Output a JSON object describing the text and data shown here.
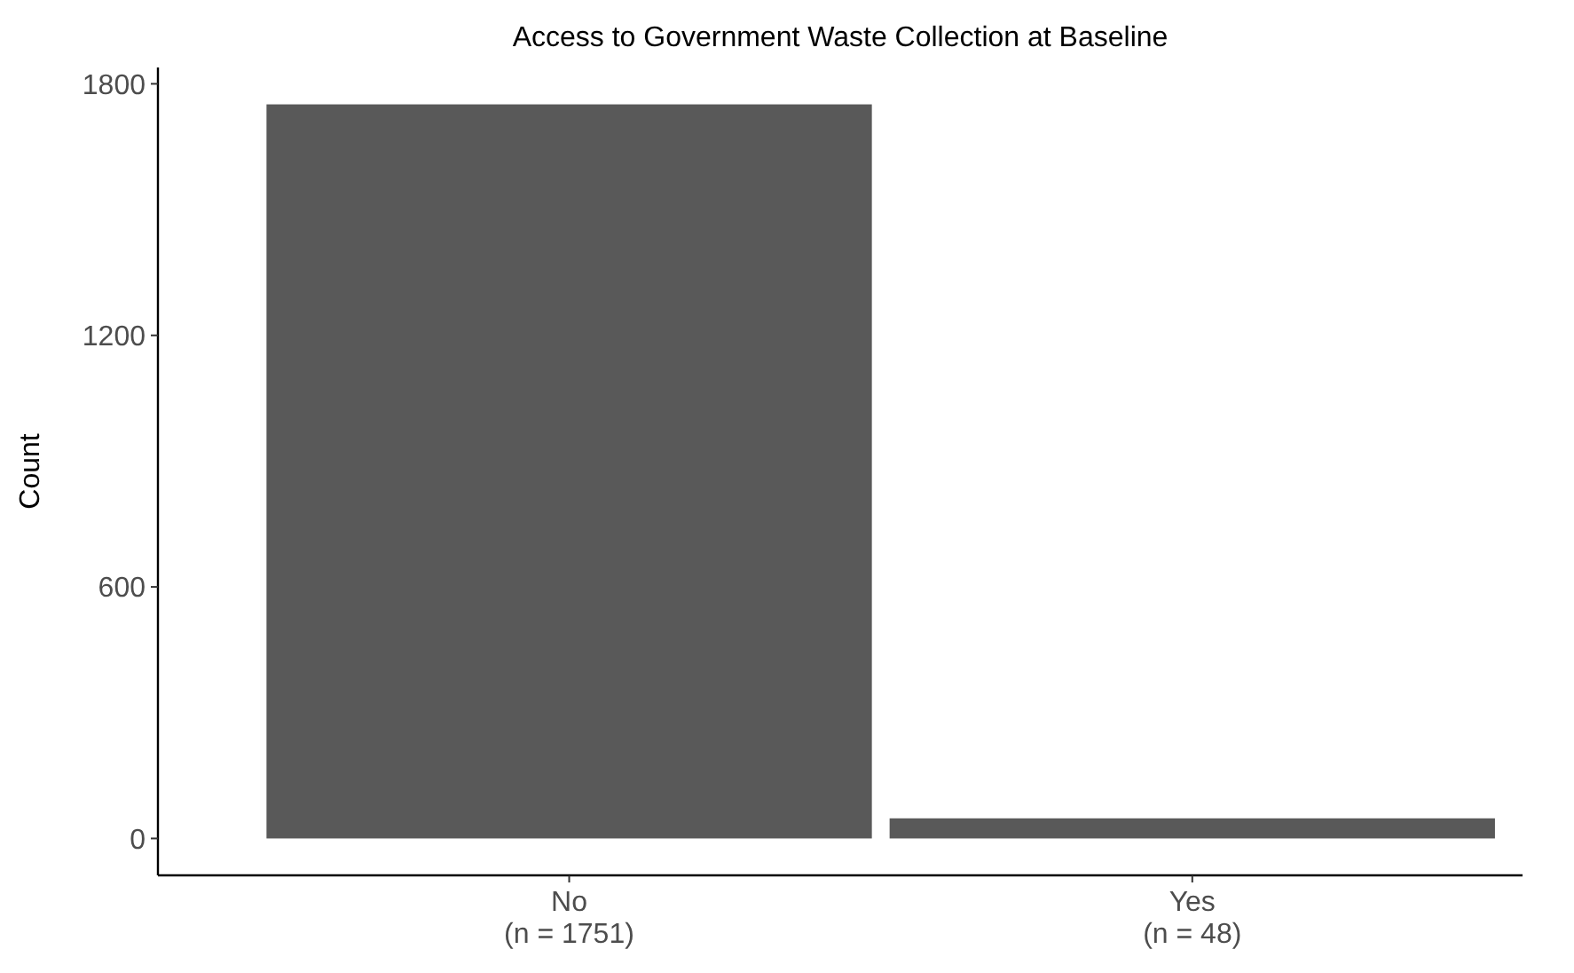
{
  "chart_data": {
    "type": "bar",
    "title": "Access to Government Waste Collection at Baseline",
    "ylabel": "Count",
    "categories": [
      "No\n(n = 1751)",
      "Yes\n(n = 48)"
    ],
    "values": [
      1751,
      48
    ],
    "color": "#595959",
    "ylim": [
      -88,
      1839
    ],
    "yticks": [
      0,
      600,
      1200,
      1800
    ],
    "grid": false
  }
}
